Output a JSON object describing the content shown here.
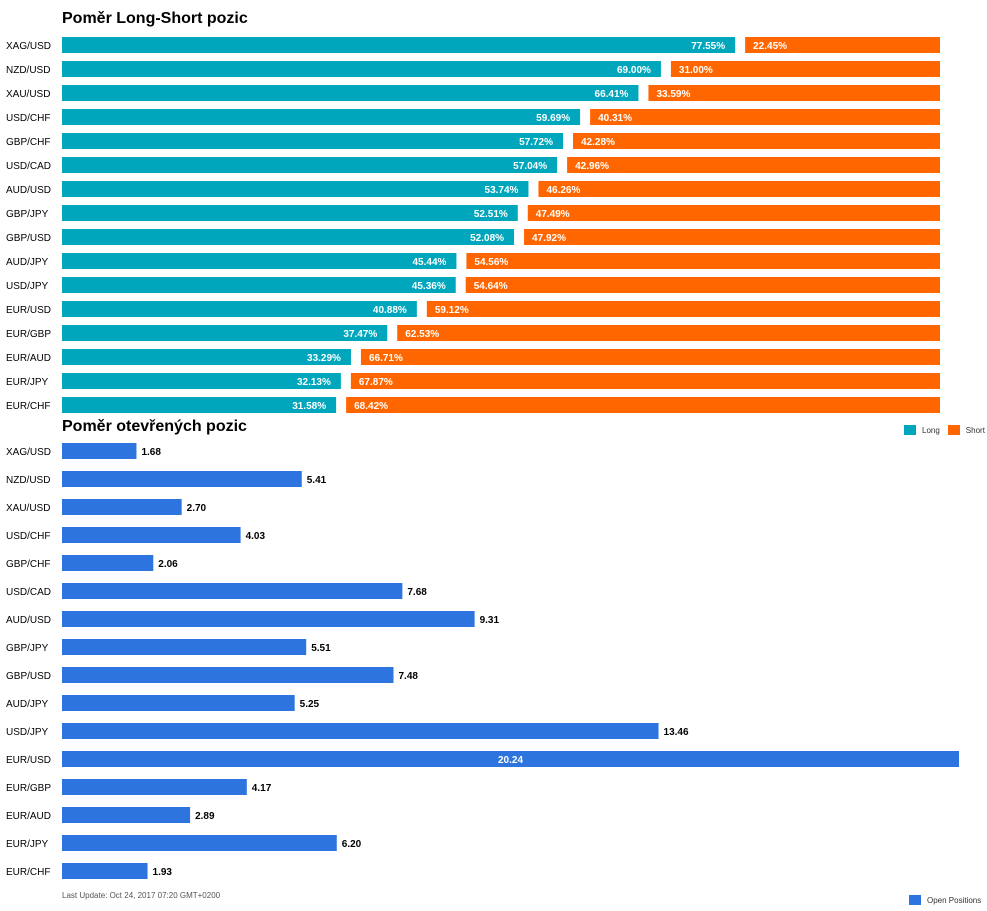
{
  "chart_data": [
    {
      "type": "bar",
      "orientation": "horizontal",
      "stacked": true,
      "title": "Poměr Long-Short pozic",
      "categories": [
        "XAG/USD",
        "NZD/USD",
        "XAU/USD",
        "USD/CHF",
        "GBP/CHF",
        "USD/CAD",
        "AUD/USD",
        "GBP/JPY",
        "GBP/USD",
        "AUD/JPY",
        "USD/JPY",
        "EUR/USD",
        "EUR/GBP",
        "EUR/AUD",
        "EUR/JPY",
        "EUR/CHF"
      ],
      "series": [
        {
          "name": "Long",
          "color": "#00A6BB",
          "values": [
            77.55,
            69.0,
            66.41,
            59.69,
            57.72,
            57.04,
            53.74,
            52.51,
            52.08,
            45.44,
            45.36,
            40.88,
            37.47,
            33.29,
            32.13,
            31.58
          ]
        },
        {
          "name": "Short",
          "color": "#FF6600",
          "values": [
            22.45,
            31.0,
            33.59,
            40.31,
            42.28,
            42.96,
            46.26,
            47.49,
            47.92,
            54.56,
            54.64,
            59.12,
            62.53,
            66.71,
            67.87,
            68.42
          ]
        }
      ],
      "value_format": "%",
      "legend_position": "bottom-right"
    },
    {
      "type": "bar",
      "orientation": "horizontal",
      "title": "Poměr otevřených pozic",
      "categories": [
        "XAG/USD",
        "NZD/USD",
        "XAU/USD",
        "USD/CHF",
        "GBP/CHF",
        "USD/CAD",
        "AUD/USD",
        "GBP/JPY",
        "GBP/USD",
        "AUD/JPY",
        "USD/JPY",
        "EUR/USD",
        "EUR/GBP",
        "EUR/AUD",
        "EUR/JPY",
        "EUR/CHF"
      ],
      "series": [
        {
          "name": "Open Positions",
          "color": "#2E74DF",
          "values": [
            1.68,
            5.41,
            2.7,
            4.03,
            2.06,
            7.68,
            9.31,
            5.51,
            7.48,
            5.25,
            13.46,
            20.24,
            4.17,
            2.89,
            6.2,
            1.93
          ]
        }
      ],
      "xlim": [
        0,
        20.24
      ],
      "legend_position": "bottom-right"
    }
  ],
  "footer": "Last Update: Oct 24, 2017 07:20 GMT+0200"
}
